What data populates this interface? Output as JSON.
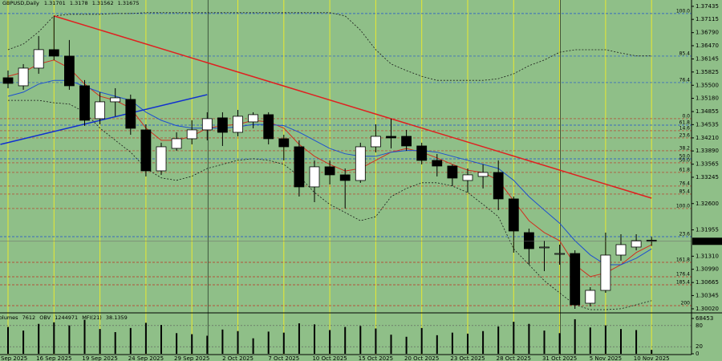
{
  "chart_data": {
    "type": "candlestick",
    "title": "GBPUSD,Daily",
    "categories": [
      "Sep 2025",
      null,
      null,
      "16 Sep 2025",
      null,
      null,
      "19 Sep 2025",
      null,
      null,
      "24 Sep 2025",
      null,
      null,
      "29 Sep 2025",
      null,
      null,
      "2 Oct 2025",
      null,
      null,
      "7 Oct 2025",
      null,
      null,
      "10 Oct 2025",
      null,
      null,
      "15 Oct 2025",
      null,
      null,
      "20 Oct 2025",
      null,
      null,
      "23 Oct 2025",
      null,
      null,
      "28 Oct 2025",
      null,
      null,
      "31 Oct 2025",
      null,
      null,
      "5 Nov 2025",
      null,
      null,
      "10 Nov 2025"
    ],
    "open": [
      1.35684,
      1.35487,
      1.3592,
      1.36373,
      1.36215,
      1.35487,
      1.34681,
      1.35094,
      1.35153,
      1.34406,
      1.33402,
      1.33953,
      1.34189,
      1.34406,
      1.34701,
      1.34346,
      1.34602,
      1.34779,
      1.34189,
      1.33992,
      1.33009,
      1.33501,
      1.33304,
      1.33166,
      1.33992,
      1.34248,
      1.34248,
      1.34012,
      1.33658,
      1.3352,
      1.33166,
      1.33265,
      1.33363,
      1.32714,
      1.31888,
      1.31534,
      1.31376,
      1.31376,
      1.30157,
      1.30472,
      1.31337,
      1.31534,
      1.31701
    ],
    "high": [
      1.35861,
      1.36018,
      1.36707,
      1.37199,
      1.36609,
      1.35625,
      1.3533,
      1.35428,
      1.35271,
      1.34543,
      1.34091,
      1.34346,
      1.34642,
      1.34838,
      1.34838,
      1.34897,
      1.34838,
      1.34838,
      1.34287,
      1.3415,
      1.33658,
      1.33658,
      1.33461,
      1.34091,
      1.34543,
      1.34681,
      1.34406,
      1.34091,
      1.33815,
      1.3356,
      1.33461,
      1.3356,
      1.33658,
      1.32773,
      1.31986,
      1.31691,
      1.31593,
      1.31455,
      1.3055,
      1.31888,
      1.31848,
      1.31848,
      1.3178
    ],
    "low": [
      1.35428,
      1.35389,
      1.35782,
      1.36117,
      1.35389,
      1.34504,
      1.34543,
      1.3474,
      1.34287,
      1.33265,
      1.33304,
      1.33894,
      1.34051,
      1.3415,
      1.34012,
      1.34248,
      1.34445,
      1.34051,
      1.33658,
      1.32773,
      1.32635,
      1.33068,
      1.32478,
      1.33107,
      1.33855,
      1.33953,
      1.33894,
      1.3356,
      1.33265,
      1.33029,
      1.32871,
      1.3297,
      1.32439,
      1.31396,
      1.31101,
      1.30944,
      1.31101,
      1.30019,
      1.30078,
      1.30412,
      1.31199,
      1.31455,
      1.31562
    ],
    "close": [
      1.35546,
      1.3592,
      1.36373,
      1.36215,
      1.35487,
      1.34642,
      1.35094,
      1.35192,
      1.34445,
      1.33402,
      1.33992,
      1.34189,
      1.34406,
      1.34681,
      1.34346,
      1.3474,
      1.34779,
      1.34189,
      1.33992,
      1.33009,
      1.33501,
      1.33304,
      1.33166,
      1.33992,
      1.34248,
      1.34209,
      1.34012,
      1.33658,
      1.3352,
      1.33225,
      1.33304,
      1.33363,
      1.32714,
      1.31927,
      1.31494,
      1.31534,
      1.31376,
      1.30117,
      1.30472,
      1.31337,
      1.31593,
      1.31691,
      1.31675
    ],
    "up_color": "#ffffff",
    "down_color": "#000000",
    "lines": [
      {
        "color": "#d03020",
        "dash": false,
        "values": [
          1.3572,
          1.3582,
          1.3602,
          1.3612,
          1.3592,
          1.3553,
          1.3523,
          1.3513,
          1.3494,
          1.3445,
          1.3415,
          1.3415,
          1.3425,
          1.3445,
          1.3451,
          1.3454,
          1.3464,
          1.346,
          1.3445,
          1.3405,
          1.3376,
          1.3356,
          1.334,
          1.3346,
          1.3366,
          1.3386,
          1.3395,
          1.3386,
          1.3372,
          1.3356,
          1.3342,
          1.3336,
          1.3317,
          1.3267,
          1.3218,
          1.3189,
          1.3169,
          1.311,
          1.3081,
          1.309,
          1.311,
          1.314,
          1.3159
        ]
      },
      {
        "color": "#1e50d0",
        "dash": false,
        "values": [
          1.3523,
          1.3533,
          1.3553,
          1.3562,
          1.3562,
          1.3547,
          1.3533,
          1.3523,
          1.3513,
          1.3484,
          1.3464,
          1.3451,
          1.3445,
          1.3445,
          1.3445,
          1.3448,
          1.3454,
          1.3454,
          1.3451,
          1.3435,
          1.3415,
          1.3395,
          1.3382,
          1.3376,
          1.3376,
          1.3386,
          1.339,
          1.339,
          1.3386,
          1.3376,
          1.3366,
          1.3356,
          1.3346,
          1.3317,
          1.3277,
          1.3244,
          1.3212,
          1.3169,
          1.3134,
          1.311,
          1.311,
          1.3126,
          1.3149
        ]
      },
      {
        "color": "#1a1a1a",
        "dash": true,
        "values": [
          1.3637,
          1.3651,
          1.3681,
          1.372,
          1.3724,
          1.3724,
          1.3724,
          1.3726,
          1.3726,
          1.3728,
          1.3728,
          1.3728,
          1.3728,
          1.3728,
          1.3728,
          1.3728,
          1.3728,
          1.3728,
          1.3728,
          1.3728,
          1.3728,
          1.3728,
          1.372,
          1.3685,
          1.3637,
          1.3602,
          1.3586,
          1.3572,
          1.3562,
          1.3562,
          1.3562,
          1.3562,
          1.3566,
          1.3578,
          1.3598,
          1.3612,
          1.3631,
          1.3637,
          1.3637,
          1.3637,
          1.3629,
          1.3622,
          1.3622
        ]
      },
      {
        "color": "#1a1a1a",
        "dash": true,
        "values": [
          1.3513,
          1.3513,
          1.3513,
          1.3507,
          1.3504,
          1.3484,
          1.3445,
          1.3415,
          1.3386,
          1.3346,
          1.3323,
          1.3317,
          1.3327,
          1.3346,
          1.3356,
          1.3366,
          1.337,
          1.3366,
          1.3356,
          1.3327,
          1.3287,
          1.3258,
          1.3238,
          1.3218,
          1.3228,
          1.3277,
          1.3297,
          1.3311,
          1.3311,
          1.3303,
          1.3287,
          1.3258,
          1.3228,
          1.3149,
          1.311,
          1.3071,
          1.3041,
          1.3012,
          1.3,
          1.3,
          1.3002,
          1.3012,
          1.3022
        ]
      }
    ],
    "trendlines": [
      {
        "color": "#e02020",
        "x": [
          3,
          42
        ],
        "y": [
          1.37199,
          1.32733
        ]
      },
      {
        "color": "#1030d0",
        "x": [
          -0.5,
          13
        ],
        "y": [
          1.34051,
          1.35271
        ]
      }
    ],
    "levels": [
      {
        "label": "100.0",
        "value": 1.37258,
        "color": "#1e50d0"
      },
      {
        "label": "85.4",
        "value": 1.36215,
        "color": "#1e50d0"
      },
      {
        "label": "76.4",
        "value": 1.35566,
        "color": "#1e50d0"
      },
      {
        "label": "0.0",
        "value": 1.34681,
        "color": "#c03020"
      },
      {
        "label": "61.8",
        "value": 1.34523,
        "color": "#1e50d0"
      },
      {
        "label": "14.6",
        "value": 1.34386,
        "color": "#c03020"
      },
      {
        "label": "23.6",
        "value": 1.34209,
        "color": "#c03020"
      },
      {
        "label": "38.2",
        "value": 1.33894,
        "color": "#c03020"
      },
      {
        "label": "50.0",
        "value": 1.33697,
        "color": "#1e50d0"
      },
      {
        "label": "50.0",
        "value": 1.33599,
        "color": "#c03020"
      },
      {
        "label": "61.8",
        "value": 1.33363,
        "color": "#c03020"
      },
      {
        "label": "76.4",
        "value": 1.33029,
        "color": "#c03020"
      },
      {
        "label": "85.4",
        "value": 1.32832,
        "color": "#c03020"
      },
      {
        "label": "100.0",
        "value": 1.32478,
        "color": "#c03020"
      },
      {
        "label": "23.6",
        "value": 1.31789,
        "color": "#1e50d0"
      },
      {
        "label": "161.8",
        "value": 1.3116,
        "color": "#c03020"
      },
      {
        "label": "176.4",
        "value": 1.30806,
        "color": "#c03020"
      },
      {
        "label": "185.4",
        "value": 1.30609,
        "color": "#c03020"
      },
      {
        "label": "200",
        "value": 1.30098,
        "color": "#c03020"
      }
    ],
    "ylim": [
      1.2996,
      1.3759
    ],
    "yticks": [
      1.37435,
      1.37115,
      {
        "value": 1.3679,
        "label": "1.36790"
      },
      {
        "value": 1.3647,
        "label": "1.36470"
      },
      1.36145,
      1.35825,
      {
        "value": 1.355,
        "label": "1.35500"
      },
      {
        "value": 1.3518,
        "label": "1.35180"
      },
      1.34855,
      1.34535,
      {
        "value": 1.3421,
        "label": "1.34210"
      },
      {
        "value": 1.3389,
        "label": "1.33890"
      },
      1.33565,
      1.33245,
      {
        "value": 1.326,
        "label": "1.32600"
      },
      1.31955,
      {
        "value": 1.3131,
        "label": "1.31310"
      },
      {
        "value": 1.3099,
        "label": "1.30990"
      },
      1.30665,
      1.30345,
      {
        "value": 1.3002,
        "label": "1.30020"
      }
    ],
    "indicator": {
      "names": [
        "Volumes",
        "OBV",
        "MFI(21)"
      ],
      "obv": 1244971,
      "mfi": 38.1359,
      "volumes": [
        52000,
        45000,
        58000,
        61000,
        55000,
        66000,
        48000,
        42000,
        50000,
        60000,
        56000,
        40000,
        38000,
        35000,
        47000,
        44000,
        30000,
        43000,
        41000,
        59000,
        57000,
        46000,
        52000,
        54000,
        49000,
        37000,
        33000,
        50000,
        36000,
        41000,
        39000,
        44000,
        53000,
        62000,
        58000,
        45000,
        40000,
        67000,
        51000,
        55000,
        48000,
        46000,
        7612
      ],
      "ylim": [
        0,
        68453
      ],
      "yticks": [
        68453,
        0
      ],
      "y2lim": [
        0,
        100
      ],
      "y2ticks": [
        80,
        20
      ]
    }
  }
}
